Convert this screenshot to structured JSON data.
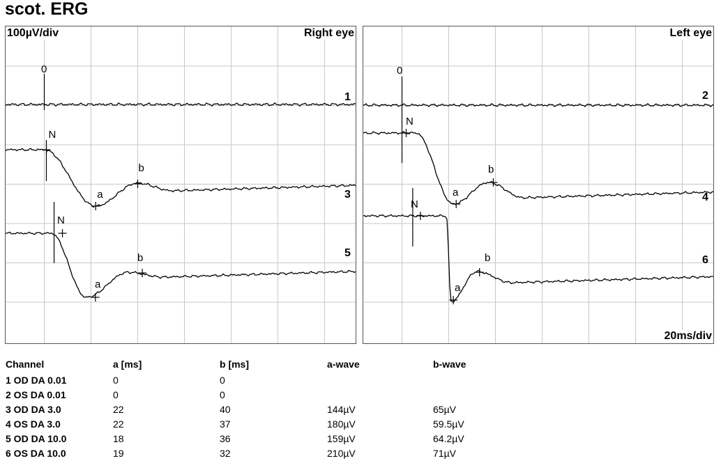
{
  "title": "scot. ERG",
  "chart_data": [
    {
      "type": "line",
      "panel": "right",
      "title": "Right eye",
      "scale_y": "100µV/div",
      "traces": [
        {
          "label": "1",
          "markers": [
            {
              "name": "0",
              "x": 0
            }
          ]
        },
        {
          "label": "3",
          "markers": [
            {
              "name": "N",
              "x": 0
            },
            {
              "name": "a",
              "x": 22
            },
            {
              "name": "b",
              "x": 40
            }
          ]
        },
        {
          "label": "5",
          "markers": [
            {
              "name": "N",
              "x": 3
            },
            {
              "name": "a",
              "x": 18
            },
            {
              "name": "b",
              "x": 36
            }
          ]
        }
      ]
    },
    {
      "type": "line",
      "panel": "left",
      "title": "Left eye",
      "scale_x": "20ms/div",
      "traces": [
        {
          "label": "2",
          "markers": [
            {
              "name": "0",
              "x": 0
            }
          ]
        },
        {
          "label": "4",
          "markers": [
            {
              "name": "N",
              "x": 0
            },
            {
              "name": "a",
              "x": 22
            },
            {
              "name": "b",
              "x": 37
            }
          ]
        },
        {
          "label": "6",
          "markers": [
            {
              "name": "N",
              "x": 4
            },
            {
              "name": "a",
              "x": 19
            },
            {
              "name": "b",
              "x": 32
            }
          ]
        }
      ]
    }
  ],
  "table": {
    "headers": [
      "Channel",
      "a [ms]",
      "b [ms]",
      "a-wave",
      "b-wave"
    ],
    "rows": [
      [
        "1 OD DA 0.01",
        "0",
        "0",
        "",
        ""
      ],
      [
        "2 OS DA 0.01",
        "0",
        "0",
        "",
        ""
      ],
      [
        "3 OD DA 3.0",
        "22",
        "40",
        "144µV",
        "65µV"
      ],
      [
        "4 OS DA 3.0",
        "22",
        "37",
        "180µV",
        "59.5µV"
      ],
      [
        "5 OD DA 10.0",
        "18",
        "36",
        "159µV",
        "64.2µV"
      ],
      [
        "6 OS DA 10.0",
        "19",
        "32",
        "210µV",
        "71µV"
      ]
    ]
  }
}
